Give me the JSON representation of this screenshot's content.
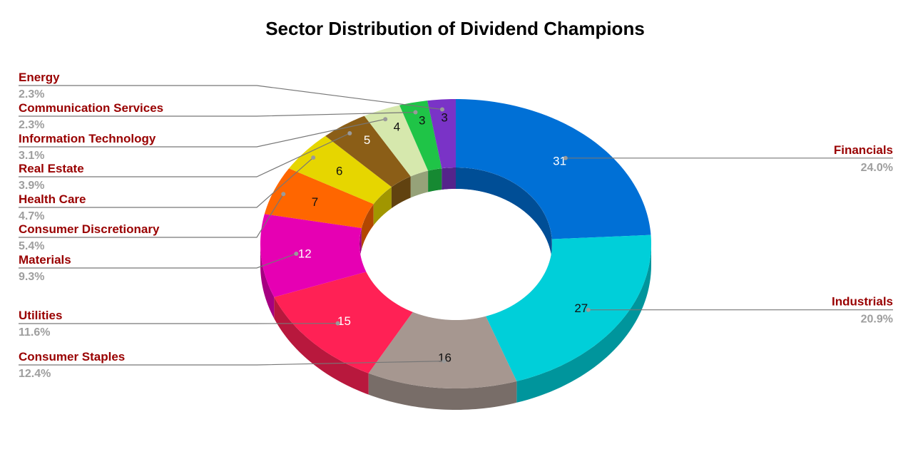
{
  "chart_data": {
    "type": "pie",
    "title": "Sector Distribution of Dividend Champions",
    "style": "3d-donut",
    "label_color": "#990000",
    "percent_color": "#9e9e9e",
    "categories": [
      "Financials",
      "Industrials",
      "Consumer Staples",
      "Utilities",
      "Materials",
      "Consumer Discretionary",
      "Health Care",
      "Real Estate",
      "Information Technology",
      "Communication Services",
      "Energy"
    ],
    "values": [
      31,
      27,
      16,
      15,
      12,
      7,
      6,
      5,
      4,
      3,
      3
    ],
    "value_labels": [
      "31",
      "27",
      "16",
      "15",
      "12",
      "7",
      "6",
      "5",
      "4",
      "3",
      "3"
    ],
    "percent_labels": [
      "24.0%",
      "20.9%",
      "12.4%",
      "11.6%",
      "9.3%",
      "5.4%",
      "4.7%",
      "3.9%",
      "3.1%",
      "2.3%",
      "2.3%"
    ],
    "colors": [
      "#0070d6",
      "#00cfd9",
      "#a69790",
      "#ff2155",
      "#e600b3",
      "#ff6600",
      "#e6d600",
      "#8b5e17",
      "#d6e8ad",
      "#1fc447",
      "#7a33c7"
    ],
    "label_side": [
      "right",
      "right",
      "left",
      "left",
      "left",
      "left",
      "left",
      "left",
      "left",
      "left",
      "left"
    ]
  }
}
